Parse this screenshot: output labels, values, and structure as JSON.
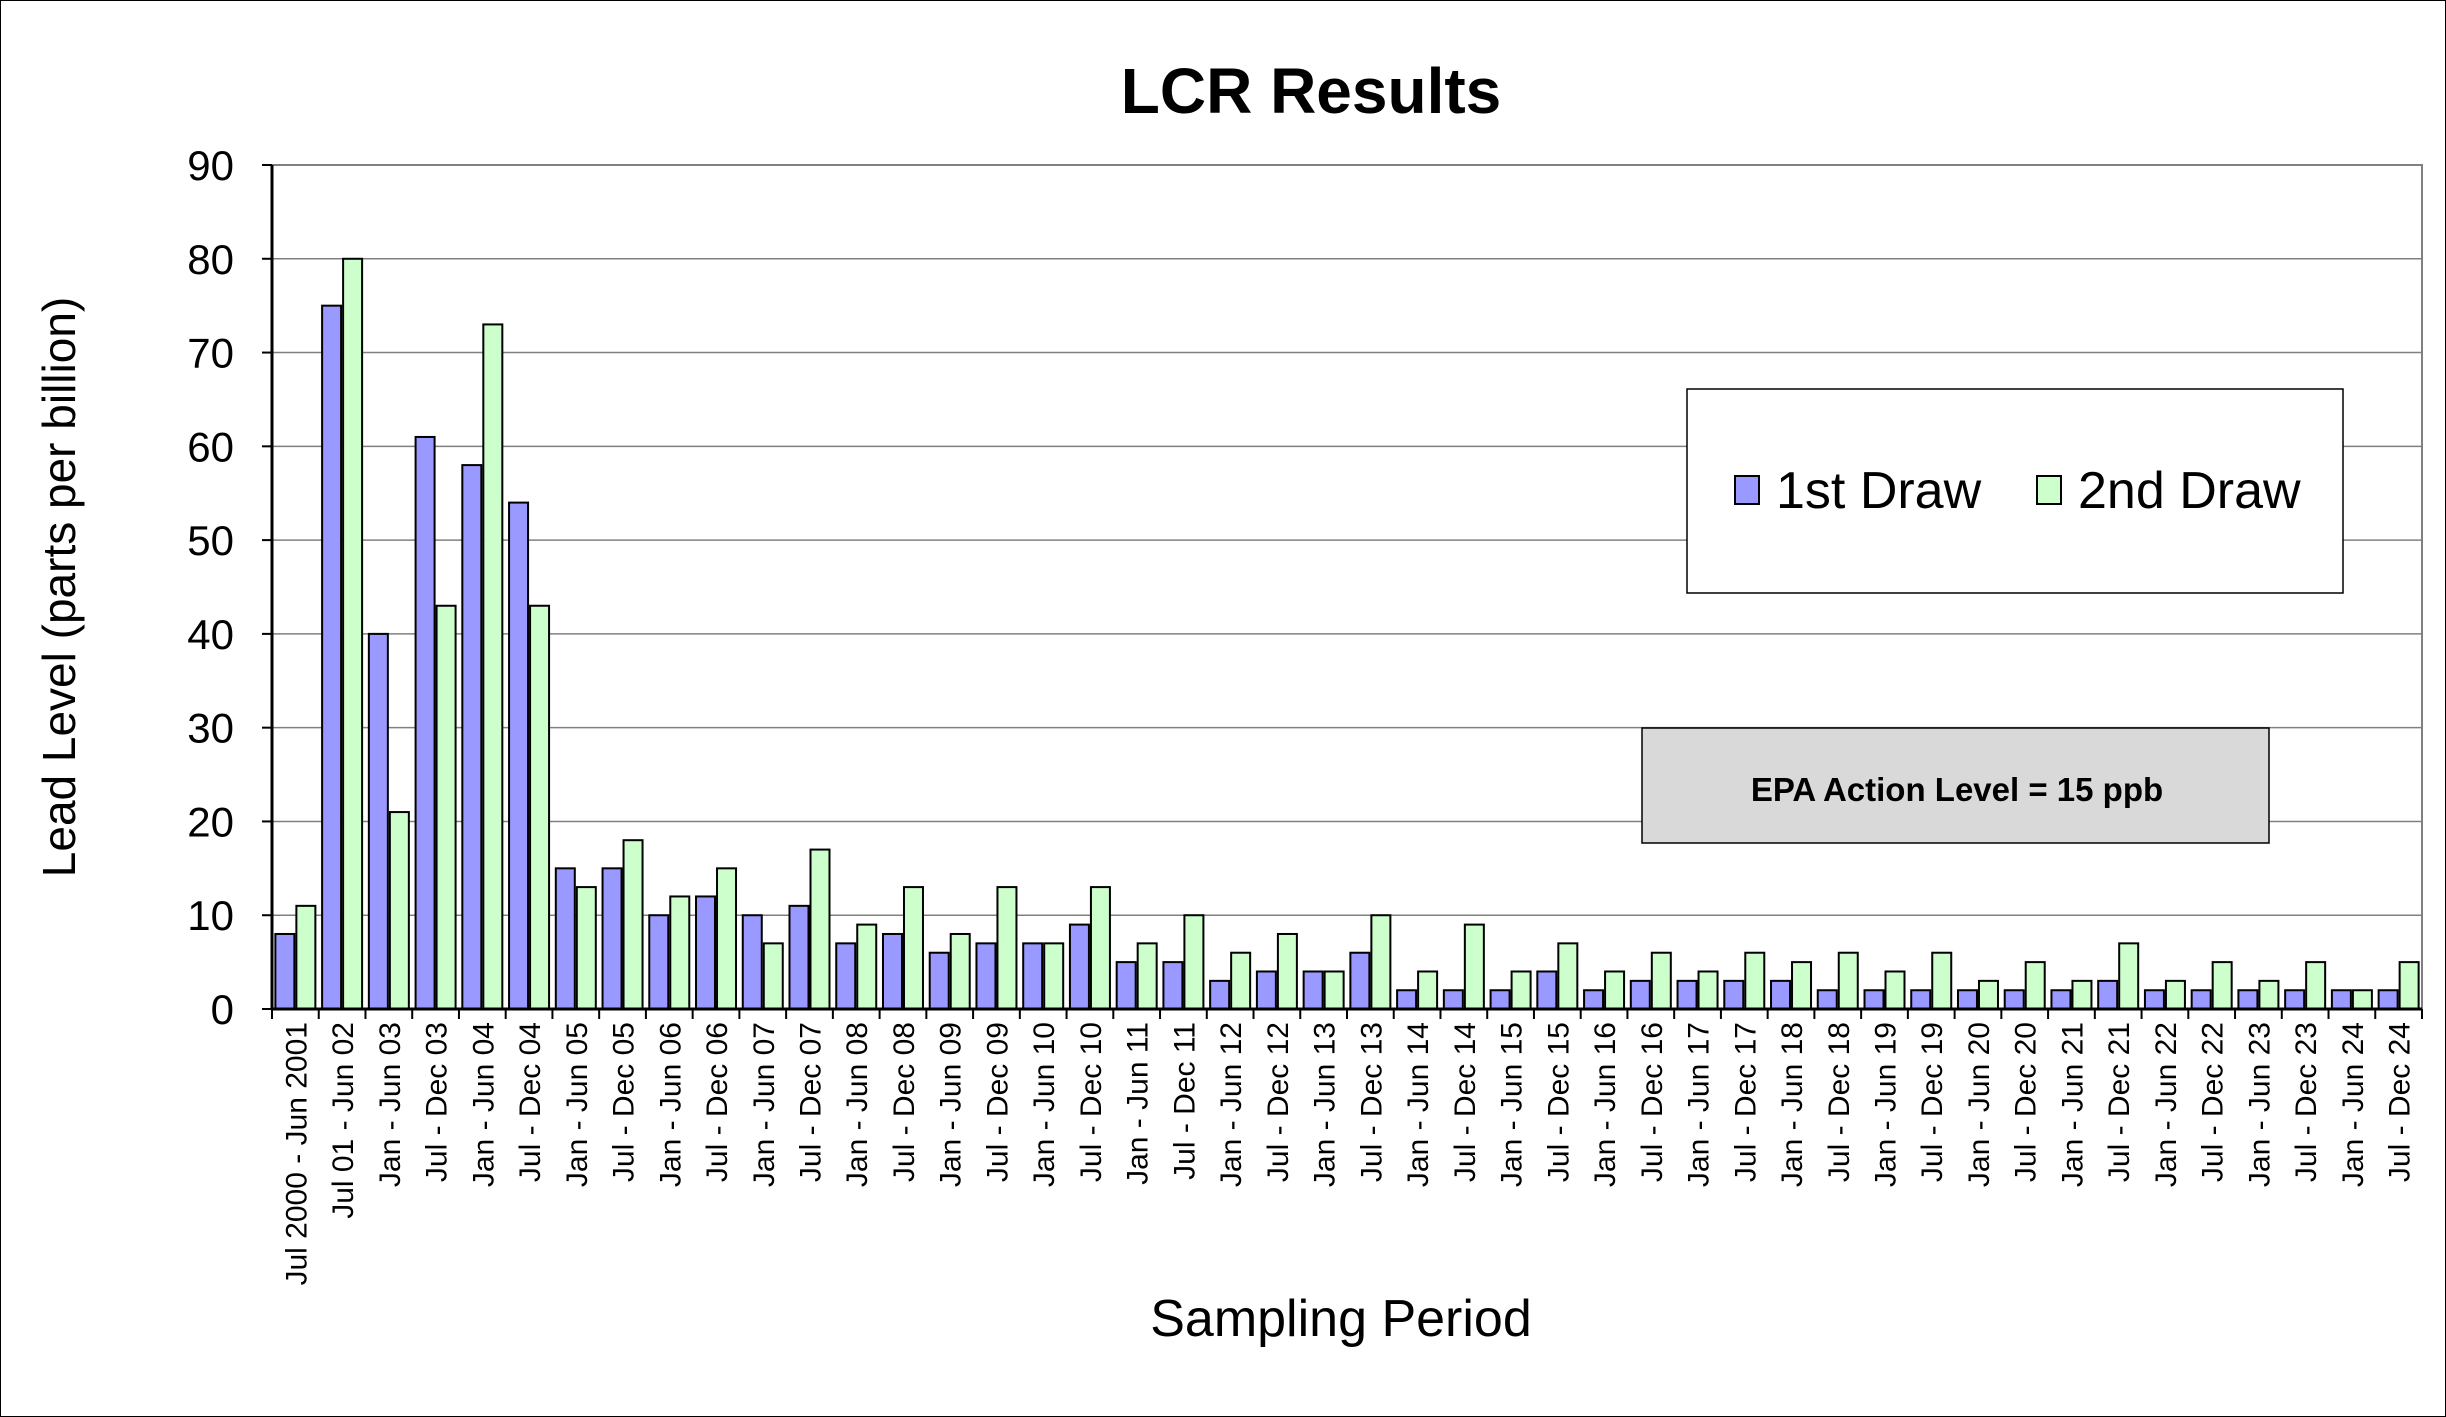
{
  "chart_data": {
    "type": "bar",
    "title": "LCR Results",
    "xlabel": "Sampling Period",
    "ylabel": "Lead Level (parts per billion)",
    "ylim": [
      0,
      90
    ],
    "yticks": [
      0,
      10,
      20,
      30,
      40,
      50,
      60,
      70,
      80,
      90
    ],
    "grid": true,
    "legend_position": "right",
    "annotation": "EPA Action Level = 15 ppb",
    "colors": {
      "first_draw": "#9999FF",
      "second_draw": "#CCFFCC",
      "plot_area": "#FFFFFF",
      "annotation_fill": "#D9D9D9",
      "gridline": "#808080"
    },
    "categories": [
      "Jul 2000 - Jun 2001",
      "Jul 01 - Jun 02",
      "Jan - Jun 03",
      "Jul - Dec 03",
      "Jan - Jun 04",
      "Jul - Dec 04",
      "Jan - Jun 05",
      "Jul - Dec 05",
      "Jan - Jun 06",
      "Jul - Dec 06",
      "Jan - Jun 07",
      "Jul - Dec 07",
      "Jan - Jun 08",
      "Jul - Dec 08",
      "Jan - Jun 09",
      "Jul - Dec 09",
      "Jan - Jun 10",
      "Jul - Dec 10",
      "Jan - Jun 11",
      "Jul - Dec 11",
      "Jan - Jun 12",
      "Jul - Dec 12",
      "Jan - Jun 13",
      "Jul - Dec 13",
      "Jan - Jun 14",
      "Jul - Dec 14",
      "Jan - Jun 15",
      "Jul - Dec 15",
      "Jan - Jun 16",
      "Jul - Dec 16",
      "Jan - Jun 17",
      "Jul - Dec 17",
      "Jan - Jun 18",
      "Jul - Dec 18",
      "Jan - Jun 19",
      "Jul - Dec 19",
      "Jan - Jun 20",
      "Jul - Dec 20",
      "Jan - Jun 21",
      "Jul - Dec 21",
      "Jan - Jun 22",
      "Jul - Dec 22",
      "Jan - Jun 23",
      "Jul - Dec 23",
      "Jan - Jun 24",
      "Jul - Dec 24"
    ],
    "series": [
      {
        "name": "1st Draw",
        "values": [
          8,
          75,
          40,
          61,
          58,
          54,
          15,
          15,
          10,
          12,
          10,
          11,
          7,
          8,
          6,
          7,
          7,
          9,
          5,
          5,
          3,
          4,
          4,
          6,
          2,
          2,
          2,
          4,
          2,
          3,
          3,
          3,
          3,
          2,
          2,
          2,
          2,
          2,
          2,
          3,
          2,
          2,
          2,
          2,
          2,
          2
        ]
      },
      {
        "name": "2nd Draw",
        "values": [
          11,
          80,
          21,
          43,
          73,
          43,
          13,
          18,
          12,
          15,
          7,
          17,
          9,
          13,
          8,
          13,
          7,
          13,
          7,
          10,
          6,
          8,
          4,
          10,
          4,
          9,
          4,
          7,
          4,
          6,
          4,
          6,
          5,
          6,
          4,
          6,
          3,
          5,
          3,
          7,
          3,
          5,
          3,
          5,
          2,
          5
        ]
      }
    ]
  }
}
